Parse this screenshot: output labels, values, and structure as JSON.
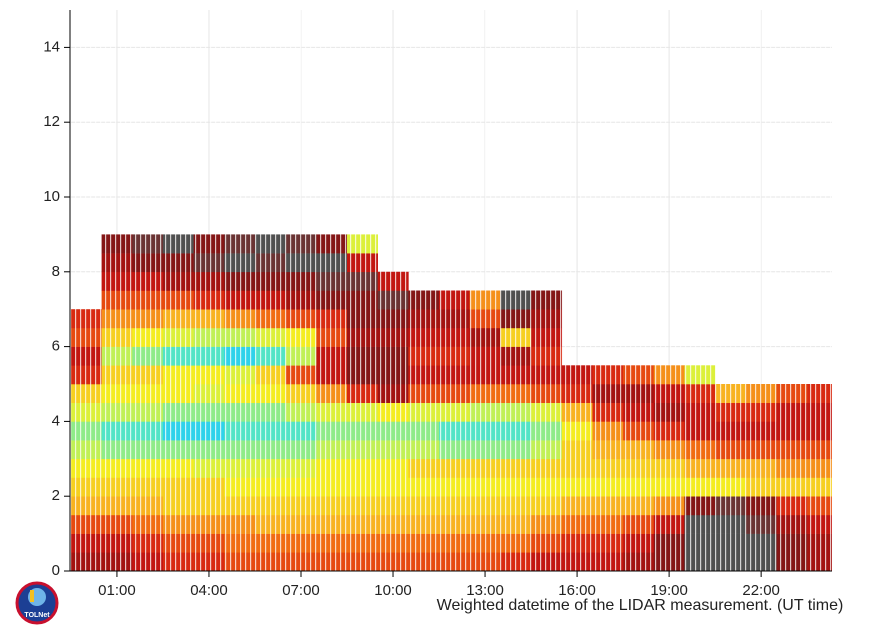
{
  "chart_data": {
    "type": "heatmap",
    "x_label": "Weighted datetime of the LIDAR measurement. (UT time)",
    "xlim": [
      -0.53,
      24.31
    ],
    "xticks": [
      {
        "value": 1,
        "label": "01:00"
      },
      {
        "value": 4,
        "label": "04:00"
      },
      {
        "value": 7,
        "label": "07:00"
      },
      {
        "value": 10,
        "label": "10:00"
      },
      {
        "value": 13,
        "label": "13:00"
      },
      {
        "value": 16,
        "label": "16:00"
      },
      {
        "value": 19,
        "label": "19:00"
      },
      {
        "value": 22,
        "label": "22:00"
      }
    ],
    "ylim": [
      0,
      15
    ],
    "yticks": [
      0,
      2,
      4,
      6,
      8,
      10,
      12,
      14
    ],
    "grid": true,
    "zlim": [
      0,
      1
    ],
    "colorscale": [
      "#1a1adc",
      "#2a9cf0",
      "#30e0e8",
      "#b8f060",
      "#f4f020",
      "#f8b020",
      "#f06010",
      "#d01810",
      "#8a1010",
      "#505050"
    ],
    "x": [
      0,
      1,
      2,
      3,
      4,
      5,
      6,
      7,
      8,
      9,
      10,
      11,
      12,
      13,
      14,
      15,
      16,
      17,
      18,
      19,
      20,
      21,
      22,
      23,
      24
    ],
    "y": [
      0.25,
      0.75,
      1.25,
      1.75,
      2.25,
      2.75,
      3.25,
      3.75,
      4.25,
      4.75,
      5.25,
      5.75,
      6.25,
      6.75,
      7.25,
      7.75,
      8.25,
      8.75
    ],
    "values": [
      [
        0.85,
        0.8,
        0.7,
        0.55,
        0.5,
        0.45,
        0.35,
        0.3,
        0.4,
        0.5,
        0.75,
        0.8,
        0.7,
        0.75,
        null,
        null,
        null,
        null
      ],
      [
        0.85,
        0.8,
        0.7,
        0.55,
        0.5,
        0.45,
        0.3,
        0.25,
        0.35,
        0.45,
        0.5,
        0.35,
        0.5,
        0.6,
        0.7,
        0.8,
        0.85,
        0.9
      ],
      [
        0.8,
        0.75,
        0.65,
        0.55,
        0.5,
        0.45,
        0.3,
        0.25,
        0.35,
        0.45,
        0.5,
        0.3,
        0.45,
        0.6,
        0.7,
        0.8,
        0.9,
        0.95
      ],
      [
        0.75,
        0.7,
        0.6,
        0.5,
        0.5,
        0.45,
        0.3,
        0.2,
        0.3,
        0.45,
        0.45,
        0.25,
        0.4,
        0.55,
        0.7,
        0.85,
        0.9,
        1
      ],
      [
        0.75,
        0.7,
        0.6,
        0.5,
        0.5,
        0.4,
        0.3,
        0.2,
        0.3,
        0.4,
        0.45,
        0.25,
        0.35,
        0.55,
        0.75,
        0.85,
        0.95,
        0.9
      ],
      [
        0.7,
        0.65,
        0.6,
        0.5,
        0.45,
        0.4,
        0.3,
        0.25,
        0.3,
        0.45,
        0.4,
        0.2,
        0.35,
        0.6,
        0.8,
        0.9,
        1,
        0.95
      ],
      [
        0.7,
        0.65,
        0.55,
        0.5,
        0.45,
        0.4,
        0.3,
        0.25,
        0.3,
        0.45,
        0.5,
        0.25,
        0.4,
        0.65,
        0.8,
        0.9,
        0.95,
        1
      ],
      [
        0.7,
        0.65,
        0.55,
        0.5,
        0.45,
        0.4,
        0.3,
        0.25,
        0.35,
        0.5,
        0.7,
        0.35,
        0.45,
        0.7,
        0.85,
        0.9,
        1,
        0.95
      ],
      [
        0.7,
        0.65,
        0.55,
        0.5,
        0.45,
        0.45,
        0.35,
        0.3,
        0.4,
        0.6,
        0.8,
        0.8,
        0.7,
        0.75,
        0.9,
        0.95,
        1,
        0.9
      ],
      [
        0.7,
        0.65,
        0.55,
        0.5,
        0.45,
        0.45,
        0.35,
        0.3,
        0.4,
        0.75,
        0.9,
        0.9,
        0.85,
        0.9,
        0.9,
        0.95,
        0.8,
        0.4
      ],
      [
        0.7,
        0.65,
        0.55,
        0.5,
        0.45,
        0.45,
        0.35,
        0.3,
        0.45,
        0.85,
        0.9,
        0.9,
        0.85,
        0.9,
        0.95,
        0.8,
        null,
        null
      ],
      [
        0.7,
        0.65,
        0.55,
        0.5,
        0.45,
        0.5,
        0.35,
        0.3,
        0.4,
        0.7,
        0.8,
        0.75,
        0.8,
        0.85,
        0.9,
        null,
        null,
        null
      ],
      [
        0.7,
        0.65,
        0.55,
        0.5,
        0.45,
        0.5,
        0.3,
        0.25,
        0.4,
        0.7,
        0.8,
        0.75,
        0.8,
        0.85,
        0.8,
        null,
        null,
        null
      ],
      [
        0.7,
        0.65,
        0.55,
        0.5,
        0.45,
        0.5,
        0.3,
        0.25,
        0.35,
        0.65,
        0.8,
        0.8,
        0.85,
        0.7,
        0.6,
        null,
        null,
        null
      ],
      [
        0.75,
        0.65,
        0.55,
        0.5,
        0.45,
        0.5,
        0.3,
        0.25,
        0.35,
        0.65,
        0.8,
        0.85,
        0.5,
        0.9,
        1,
        null,
        null,
        null
      ],
      [
        0.8,
        0.7,
        0.6,
        0.5,
        0.45,
        0.5,
        0.35,
        0.3,
        0.4,
        0.7,
        0.8,
        0.75,
        0.8,
        0.85,
        0.9,
        null,
        null,
        null
      ],
      [
        0.8,
        0.75,
        0.65,
        0.55,
        0.45,
        0.5,
        0.5,
        0.45,
        0.55,
        0.75,
        0.8,
        null,
        null,
        null,
        null,
        null,
        null,
        null
      ],
      [
        0.8,
        0.75,
        0.65,
        0.55,
        0.45,
        0.5,
        0.55,
        0.6,
        0.75,
        0.85,
        0.75,
        null,
        null,
        null,
        null,
        null,
        null,
        null
      ],
      [
        0.85,
        0.8,
        0.7,
        0.55,
        0.45,
        0.5,
        0.55,
        0.7,
        0.8,
        0.85,
        0.7,
        null,
        null,
        null,
        null,
        null,
        null,
        null
      ],
      [
        0.9,
        0.9,
        0.8,
        0.6,
        0.45,
        0.5,
        0.6,
        0.75,
        0.85,
        0.8,
        0.6,
        null,
        null,
        null,
        null,
        null,
        null,
        null
      ],
      [
        1,
        1,
        1,
        0.9,
        0.45,
        0.55,
        0.65,
        0.8,
        0.8,
        0.75,
        0.4,
        null,
        null,
        null,
        null,
        null,
        null,
        null
      ],
      [
        1,
        1,
        1,
        0.95,
        0.45,
        0.55,
        0.7,
        0.8,
        0.75,
        0.55,
        null,
        null,
        null,
        null,
        null,
        null,
        null,
        null
      ],
      [
        1,
        1,
        0.95,
        0.9,
        0.5,
        0.55,
        0.7,
        0.8,
        0.75,
        0.6,
        null,
        null,
        null,
        null,
        null,
        null,
        null,
        null
      ],
      [
        0.9,
        0.9,
        0.85,
        0.75,
        0.5,
        0.6,
        0.7,
        0.8,
        0.8,
        0.7,
        null,
        null,
        null,
        null,
        null,
        null,
        null,
        null
      ],
      [
        0.85,
        0.85,
        0.8,
        0.7,
        0.5,
        0.6,
        0.7,
        0.8,
        0.8,
        0.75,
        null,
        null,
        null,
        null,
        null,
        null,
        null,
        null
      ]
    ]
  },
  "logo_text": "TOLNet"
}
